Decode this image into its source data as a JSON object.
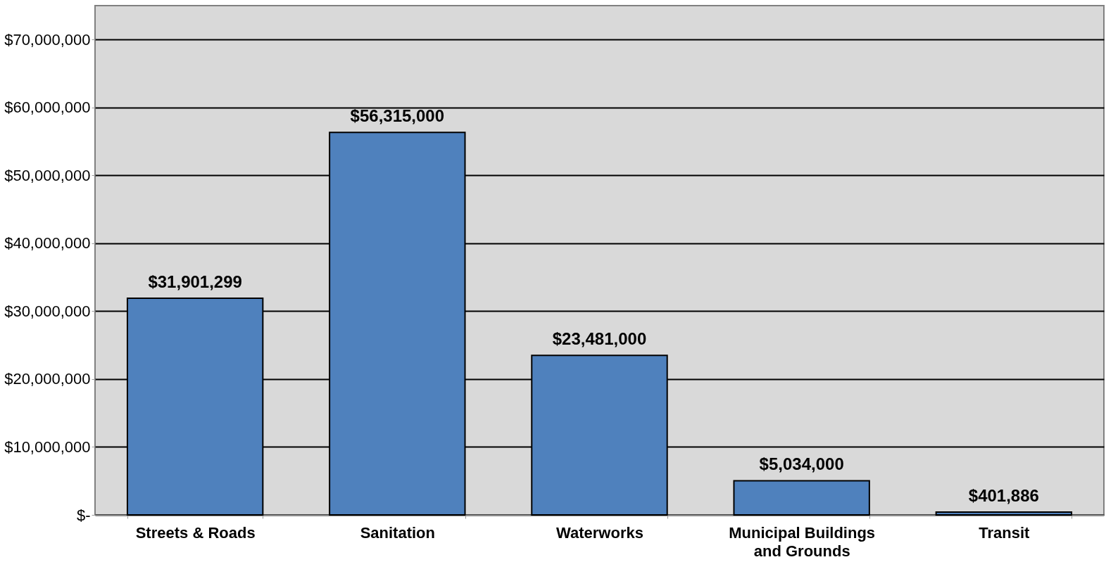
{
  "chart_data": {
    "type": "bar",
    "categories": [
      "Streets & Roads",
      "Sanitation",
      "Waterworks",
      "Municipal Buildings and Grounds",
      "Transit"
    ],
    "values": [
      31901299,
      56315000,
      23481000,
      5034000,
      401886
    ],
    "value_labels": [
      "$31,901,299",
      "$56,315,000",
      "$23,481,000",
      "$5,034,000",
      "$401,886"
    ],
    "color": "#4f81bd",
    "ylim": [
      0,
      75000000
    ],
    "yticks": [
      {
        "value": 0,
        "label": "$-"
      },
      {
        "value": 10000000,
        "label": "$10,000,000"
      },
      {
        "value": 20000000,
        "label": "$20,000,000"
      },
      {
        "value": 30000000,
        "label": "$30,000,000"
      },
      {
        "value": 40000000,
        "label": "$40,000,000"
      },
      {
        "value": 50000000,
        "label": "$50,000,000"
      },
      {
        "value": 60000000,
        "label": "$60,000,000"
      },
      {
        "value": 70000000,
        "label": "$70,000,000"
      }
    ],
    "grid": "y"
  }
}
